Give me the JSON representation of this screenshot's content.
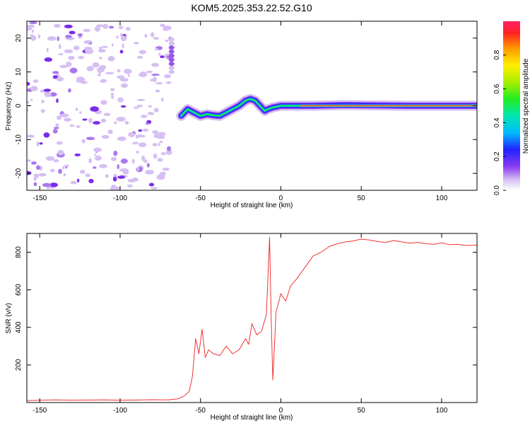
{
  "chart_data": [
    {
      "type": "heatmap",
      "title": "KOM5.2025.353.22.52.G10",
      "xlabel": "Height of straight line (km)",
      "ylabel": "Frequency (Hz)",
      "xlim": [
        -158,
        122
      ],
      "ylim": [
        -25,
        25
      ],
      "xticks": [
        -150,
        -100,
        -50,
        0,
        50,
        100
      ],
      "yticks": [
        -20,
        -10,
        0,
        10,
        20
      ],
      "colorbar": {
        "label": "Normalized spectral amplitude",
        "range": [
          0,
          1
        ],
        "ticks": [
          "0.0",
          "0.2",
          "0.4",
          "0.6",
          "0.8"
        ]
      },
      "ridge": {
        "x": [
          -62,
          -58,
          -54,
          -50,
          -46,
          -42,
          -38,
          -34,
          -30,
          -26,
          -22,
          -19,
          -16,
          -13,
          -10,
          -8,
          -5,
          0,
          5,
          10,
          20,
          40,
          60,
          80,
          100,
          122
        ],
        "y": [
          -3,
          -1,
          -2,
          -3,
          -2.5,
          -2.8,
          -3,
          -2,
          -1,
          0,
          1.5,
          2,
          1.5,
          0,
          -1.5,
          -1,
          -0.5,
          0,
          0,
          0,
          0,
          0.2,
          0.1,
          0,
          0,
          0
        ]
      }
    },
    {
      "type": "line",
      "xlabel": "Height of straight line (km)",
      "ylabel": "SNR (v/v)",
      "xlim": [
        -158,
        122
      ],
      "ylim": [
        0,
        900
      ],
      "xticks": [
        -150,
        -100,
        -50,
        0,
        50,
        100
      ],
      "yticks": [
        200,
        400,
        600,
        800
      ],
      "color": "#ee3333",
      "x": [
        -158,
        -150,
        -140,
        -130,
        -120,
        -110,
        -100,
        -90,
        -80,
        -70,
        -64,
        -60,
        -57,
        -55,
        -53,
        -51,
        -49,
        -47,
        -45,
        -42,
        -38,
        -34,
        -30,
        -26,
        -22,
        -20,
        -18,
        -15,
        -12,
        -9,
        -7,
        -6,
        -5,
        -3,
        0,
        3,
        6,
        10,
        15,
        20,
        25,
        30,
        35,
        40,
        45,
        50,
        55,
        60,
        65,
        70,
        75,
        80,
        85,
        90,
        95,
        100,
        105,
        110,
        115,
        122
      ],
      "y": [
        10,
        12,
        14,
        12,
        13,
        14,
        12,
        13,
        15,
        14,
        20,
        35,
        60,
        140,
        340,
        260,
        390,
        240,
        280,
        260,
        250,
        300,
        260,
        280,
        340,
        310,
        420,
        360,
        380,
        470,
        880,
        440,
        120,
        480,
        580,
        540,
        620,
        660,
        720,
        780,
        800,
        830,
        845,
        855,
        860,
        870,
        865,
        858,
        852,
        862,
        856,
        848,
        852,
        846,
        842,
        850,
        840,
        842,
        836,
        838
      ]
    }
  ]
}
